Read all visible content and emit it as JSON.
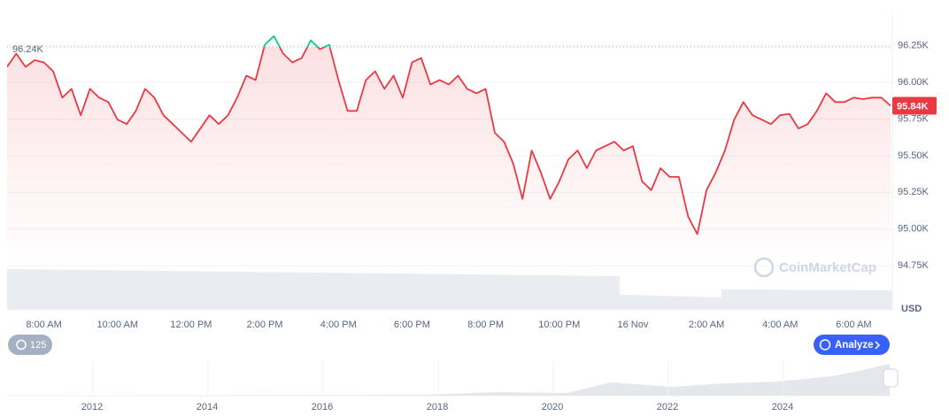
{
  "chart_data": {
    "type": "line",
    "categories": [
      null,
      null,
      null,
      null,
      "8:00 AM",
      null,
      null,
      null,
      null,
      null,
      null,
      null,
      "10:00 AM",
      null,
      null,
      null,
      null,
      null,
      null,
      null,
      "12:00 PM",
      null,
      null,
      null,
      null,
      null,
      null,
      null,
      "2:00 PM",
      null,
      null,
      null,
      null,
      null,
      null,
      null,
      "4:00 PM",
      null,
      null,
      null,
      null,
      null,
      null,
      null,
      "6:00 PM",
      null,
      null,
      null,
      null,
      null,
      null,
      null,
      "8:00 PM",
      null,
      null,
      null,
      null,
      null,
      null,
      null,
      "10:00 PM",
      null,
      null,
      null,
      null,
      null,
      null,
      null,
      "16 Nov",
      null,
      null,
      null,
      null,
      null,
      null,
      null,
      "2:00 AM",
      null,
      null,
      null,
      null,
      null,
      null,
      null,
      "4:00 AM",
      null,
      null,
      null,
      null,
      null,
      null,
      null,
      "6:00 AM",
      null,
      null,
      null,
      null
    ],
    "series": [
      {
        "color": "#ea3943",
        "above_color": "#16c784",
        "values": [
          96105,
          96195,
          96105,
          96150,
          96135,
          96075,
          95895,
          95955,
          95775,
          95955,
          95895,
          95865,
          95745,
          95715,
          95805,
          95955,
          95895,
          95775,
          95715,
          95655,
          95595,
          95685,
          95775,
          95715,
          95775,
          95895,
          96045,
          96015,
          96255,
          96315,
          96195,
          96135,
          96165,
          96285,
          96225,
          96255,
          96015,
          95805,
          95805,
          96015,
          96075,
          95955,
          96045,
          95895,
          96135,
          96165,
          95985,
          96015,
          95985,
          96045,
          95955,
          95925,
          95955,
          95655,
          95595,
          95445,
          95205,
          95535,
          95385,
          95205,
          95325,
          95475,
          95535,
          95415,
          95535,
          95565,
          95595,
          95535,
          95565,
          95325,
          95265,
          95415,
          95355,
          95355,
          95085,
          94965,
          95265,
          95385,
          95535,
          95745,
          95865,
          95775,
          95745,
          95715,
          95775,
          95785,
          95685,
          95715,
          95805,
          95925,
          95865,
          95865,
          95895,
          95885,
          95895,
          95895,
          95840
        ]
      }
    ],
    "ylim": [
      94450,
      96500
    ],
    "yticks": [
      {
        "value": 94750,
        "label": "94.75K"
      },
      {
        "value": 95000,
        "label": "95.00K"
      },
      {
        "value": 95250,
        "label": "95.25K"
      },
      {
        "value": 95500,
        "label": "95.50K"
      },
      {
        "value": 95750,
        "label": "95.75K"
      },
      {
        "value": 96000,
        "label": "96.00K"
      },
      {
        "value": 96250,
        "label": "96.25K"
      }
    ],
    "grid": true,
    "reference": {
      "value": 96240,
      "label": "96.24K"
    },
    "current": {
      "value": 95840,
      "label": "95.84K"
    }
  },
  "ui": {
    "currency": "USD",
    "count_badge": "125",
    "analyze_button": "Analyze",
    "watermark": "CoinMarketCap"
  },
  "navigator": {
    "years": [
      "2012",
      "2014",
      "2016",
      "2018",
      "2020",
      "2022",
      "2024"
    ]
  }
}
